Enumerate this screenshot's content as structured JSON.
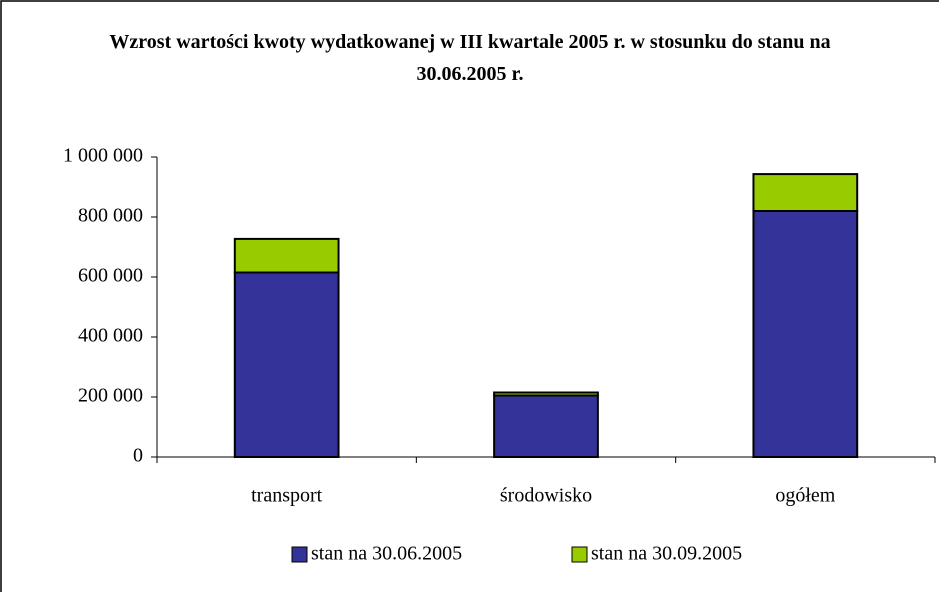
{
  "chart_data": {
    "type": "stacked_bar",
    "title": "Wzrost wartości kwoty wydatkowanej w III kwartale 2005 r. w stosunku do stanu na 30.06.2005 r.",
    "categories": [
      "transport",
      "środowisko",
      "ogółem"
    ],
    "series": [
      {
        "name": "stan na 30.06.2005",
        "color": "#333399",
        "values": [
          615000,
          205000,
          820000
        ]
      },
      {
        "name": "stan na 30.09.2005",
        "color": "#99cc00",
        "values": [
          112000,
          10000,
          123000
        ]
      }
    ],
    "ylim": [
      0,
      1000000
    ],
    "yticks": [
      0,
      {
        "value": 200000,
        "label": "200 000"
      },
      {
        "value": 400000,
        "label": "400 000"
      },
      {
        "value": 600000,
        "label": "600 000"
      },
      {
        "value": 800000,
        "label": "800 000"
      },
      {
        "value": 1000000,
        "label": "1 000 000"
      }
    ],
    "grid": false,
    "legend": "bottom"
  }
}
